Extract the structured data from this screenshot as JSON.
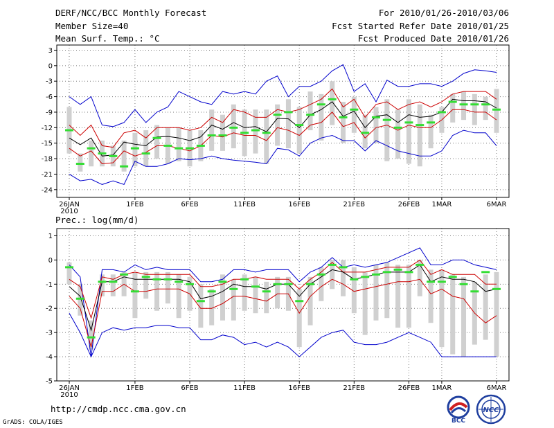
{
  "header": {
    "left": [
      "DERF/NCC/BCC Monthly Forecast",
      "Member Size=40",
      "Mean Surf. Temp.: °C"
    ],
    "right": [
      "For 2010/01/26-2010/03/06",
      "Fcst Started Refer Date 2010/01/25",
      "Fcst Produced Date 2010/01/26"
    ]
  },
  "precip_title": "Prec.: log(mm/d)",
  "footer_url": "http://cmdp.ncc.cma.gov.cn",
  "grads_credit": "GrADS: COLA/IGES",
  "logos": {
    "bcc": "BCC",
    "ncc": "NCC"
  },
  "colors": {
    "max_min": "#0000cc",
    "spread": "#cc0000",
    "mean": "#000000",
    "median": "#33dd33",
    "box": "#d0d0d0"
  },
  "x_tick_labels": [
    "26JAN",
    "1FEB",
    "6FEB",
    "11FEB",
    "16FEB",
    "21FEB",
    "26FEB",
    "1MAR",
    "6MAR"
  ],
  "x_year_label": "2010",
  "chart_data": [
    {
      "type": "line",
      "title": "Mean Surf. Temp.: °C",
      "x": [
        "01/26",
        "01/27",
        "01/28",
        "01/29",
        "01/30",
        "01/31",
        "02/01",
        "02/02",
        "02/03",
        "02/04",
        "02/05",
        "02/06",
        "02/07",
        "02/08",
        "02/09",
        "02/10",
        "02/11",
        "02/12",
        "02/13",
        "02/14",
        "02/15",
        "02/16",
        "02/17",
        "02/18",
        "02/19",
        "02/20",
        "02/21",
        "02/22",
        "02/23",
        "02/24",
        "02/25",
        "02/26",
        "02/27",
        "02/28",
        "03/01",
        "03/02",
        "03/03",
        "03/04",
        "03/05",
        "03/06"
      ],
      "y_ticks": [
        3,
        0,
        -3,
        -6,
        -9,
        -12,
        -15,
        -18,
        -21,
        -24
      ],
      "ylim": [
        -25.5,
        4
      ],
      "series": [
        {
          "name": "max",
          "values": [
            -6,
            -7.5,
            -6,
            -11.5,
            -11.8,
            -11,
            -8.5,
            -11,
            -9,
            -8,
            -5,
            -6,
            -7,
            -7.5,
            -5,
            -5.5,
            -5,
            -5.5,
            -3,
            -2,
            -6,
            -4,
            -4,
            -3,
            -1,
            0.2,
            -5,
            -3.5,
            -7,
            -2.8,
            -4,
            -4,
            -3.5,
            -3.5,
            -4,
            -3,
            -1.5,
            -0.8,
            -1,
            -1.3
          ]
        },
        {
          "name": "upper",
          "values": [
            -11.5,
            -13.5,
            -11.5,
            -15.5,
            -15.8,
            -13,
            -12.5,
            -14,
            -12,
            -12,
            -12,
            -12.5,
            -12,
            -10,
            -11,
            -8.5,
            -9,
            -10,
            -10,
            -8.5,
            -9,
            -8.5,
            -7.5,
            -6.5,
            -4.5,
            -8,
            -6.5,
            -10,
            -7.5,
            -7,
            -8.5,
            -7.5,
            -7,
            -8,
            -7,
            -5.5,
            -5,
            -5,
            -5,
            -6.5
          ]
        },
        {
          "name": "mean",
          "values": [
            -14,
            -15.3,
            -14,
            -17.5,
            -17.3,
            -14.8,
            -15.2,
            -15.5,
            -13.8,
            -13.7,
            -14,
            -14.5,
            -13.8,
            -11.5,
            -12.3,
            -11,
            -12,
            -11.8,
            -12.8,
            -10.2,
            -10.3,
            -12,
            -9.5,
            -8.5,
            -7,
            -9.8,
            -8.8,
            -12,
            -9.8,
            -9.5,
            -11,
            -9.5,
            -10,
            -9.8,
            -9,
            -6.5,
            -6.8,
            -6.8,
            -7,
            -8.2
          ]
        },
        {
          "name": "lower",
          "values": [
            -16,
            -17.5,
            -16.5,
            -19,
            -18.8,
            -16.5,
            -17.5,
            -16.8,
            -15.5,
            -15.5,
            -16,
            -16.5,
            -15.5,
            -13.5,
            -13.8,
            -13,
            -13.5,
            -13.5,
            -14.5,
            -12,
            -12.5,
            -13.5,
            -11.5,
            -11,
            -9,
            -11.8,
            -11,
            -14,
            -12,
            -11.5,
            -12.5,
            -11.5,
            -12,
            -12,
            -10.5,
            -8.5,
            -8.5,
            -9,
            -9,
            -10.5
          ]
        },
        {
          "name": "min",
          "values": [
            -21,
            -22.3,
            -22,
            -23,
            -22.3,
            -23,
            -18.5,
            -19.5,
            -19.5,
            -19,
            -18,
            -18.2,
            -18,
            -17.5,
            -18,
            -18.3,
            -18.5,
            -18.7,
            -19,
            -16,
            -16.3,
            -17.5,
            -15,
            -14,
            -13.5,
            -14.5,
            -14.5,
            -16.5,
            -14.5,
            -15.5,
            -16.5,
            -17,
            -17.5,
            -17.5,
            -16.5,
            -13.5,
            -12.5,
            -13,
            -13,
            -15.5
          ]
        },
        {
          "name": "median",
          "values": [
            -12.5,
            -19,
            -16,
            -17,
            -17.5,
            -19.5,
            -16,
            -17,
            -14,
            -15.5,
            -16,
            -16,
            -15.5,
            -13.5,
            -13.5,
            -12,
            -13,
            -12.5,
            -13,
            -9.5,
            -9,
            -11.5,
            -9.5,
            -7.5,
            -6.5,
            -10,
            -8.5,
            -13,
            -10,
            -10.5,
            -12,
            -11,
            -11.5,
            -11,
            -9,
            -7,
            -7.5,
            -7.5,
            -7.5,
            -8.5
          ]
        },
        {
          "name": "box_top",
          "values": [
            -8,
            -17,
            -14.5,
            -14.5,
            -15.5,
            -14.5,
            -13,
            -12.5,
            -11.5,
            -12,
            -12,
            -12.5,
            -12.5,
            -8.5,
            -9.5,
            -7.5,
            -8.5,
            -8.5,
            -8.5,
            -7.5,
            -6.5,
            -8,
            -5,
            -5.5,
            -3,
            -7,
            -6,
            -9.5,
            -8,
            -6.5,
            -8.5,
            -6.5,
            -7.5,
            -9.5,
            -8,
            -5.5,
            -5,
            -5.5,
            -6,
            -4.5
          ]
        },
        {
          "name": "box_bottom",
          "values": [
            -17,
            -20.5,
            -19.5,
            -19.5,
            -19.5,
            -20.5,
            -19.5,
            -19.5,
            -18,
            -19,
            -18.5,
            -19.5,
            -18.5,
            -16.5,
            -16.5,
            -16,
            -17.5,
            -17,
            -19,
            -15.5,
            -16,
            -17,
            -12.5,
            -14.5,
            -11.5,
            -15,
            -13,
            -16,
            -15,
            -18.5,
            -18,
            -19,
            -19.5,
            -16,
            -13,
            -11,
            -10.5,
            -11.5,
            -10.5,
            -13
          ]
        }
      ]
    },
    {
      "type": "line",
      "title": "Prec.: log(mm/d)",
      "x": [
        "01/26",
        "01/27",
        "01/28",
        "01/29",
        "01/30",
        "01/31",
        "02/01",
        "02/02",
        "02/03",
        "02/04",
        "02/05",
        "02/06",
        "02/07",
        "02/08",
        "02/09",
        "02/10",
        "02/11",
        "02/12",
        "02/13",
        "02/14",
        "02/15",
        "02/16",
        "02/17",
        "02/18",
        "02/19",
        "02/20",
        "02/21",
        "02/22",
        "02/23",
        "02/24",
        "02/25",
        "02/26",
        "02/27",
        "02/28",
        "03/01",
        "03/02",
        "03/03",
        "03/04",
        "03/05",
        "03/06"
      ],
      "y_ticks": [
        1,
        0,
        -1,
        -2,
        -3,
        -4,
        -5
      ],
      "ylim": [
        -5,
        1.3
      ],
      "series": [
        {
          "name": "max",
          "values": [
            -0.2,
            -0.7,
            -4,
            -0.4,
            -0.4,
            -0.5,
            -0.2,
            -0.4,
            -0.3,
            -0.4,
            -0.4,
            -0.4,
            -0.9,
            -0.9,
            -0.8,
            -0.4,
            -0.4,
            -0.5,
            -0.4,
            -0.4,
            -0.4,
            -0.9,
            -0.5,
            -0.3,
            0.1,
            -0.3,
            -0.2,
            -0.3,
            -0.2,
            -0.1,
            0.1,
            0.3,
            0.5,
            -0.2,
            -0.2,
            0,
            0,
            -0.2,
            -0.3,
            -0.4
          ]
        },
        {
          "name": "upper",
          "values": [
            -0.8,
            -1.1,
            -2.4,
            -0.7,
            -0.8,
            -0.6,
            -0.5,
            -0.6,
            -0.6,
            -0.6,
            -0.6,
            -0.6,
            -1.1,
            -1.1,
            -1,
            -0.8,
            -0.8,
            -0.7,
            -0.8,
            -0.8,
            -0.8,
            -1.2,
            -0.8,
            -0.5,
            -0.1,
            -0.5,
            -0.5,
            -0.5,
            -0.4,
            -0.3,
            -0.3,
            -0.3,
            0,
            -0.6,
            -0.4,
            -0.6,
            -0.6,
            -0.6,
            -1,
            -1
          ]
        },
        {
          "name": "mean",
          "values": [
            -1.1,
            -1.5,
            -2.9,
            -0.9,
            -0.9,
            -0.7,
            -0.8,
            -0.8,
            -0.8,
            -0.8,
            -0.8,
            -0.9,
            -1.6,
            -1.5,
            -1.3,
            -1,
            -1.1,
            -1.1,
            -1.2,
            -1,
            -1,
            -1.5,
            -1,
            -0.7,
            -0.4,
            -0.5,
            -0.8,
            -0.7,
            -0.6,
            -0.5,
            -0.5,
            -0.5,
            -0.2,
            -0.9,
            -0.7,
            -0.8,
            -0.8,
            -0.9,
            -1.3,
            -1.2
          ]
        },
        {
          "name": "lower",
          "values": [
            -1.5,
            -2,
            -3.6,
            -1.3,
            -1.3,
            -1,
            -1.3,
            -1.3,
            -1.2,
            -1.2,
            -1.2,
            -1.4,
            -2,
            -2,
            -1.8,
            -1.5,
            -1.5,
            -1.6,
            -1.7,
            -1.4,
            -1.4,
            -2.2,
            -1.5,
            -1.1,
            -0.8,
            -1,
            -1.3,
            -1.2,
            -1.1,
            -1,
            -0.9,
            -0.9,
            -0.8,
            -1.4,
            -1.2,
            -1.5,
            -1.6,
            -2.2,
            -2.6,
            -2.3
          ]
        },
        {
          "name": "min",
          "values": [
            -2.2,
            -3,
            -4,
            -3,
            -2.8,
            -2.9,
            -2.8,
            -2.8,
            -2.7,
            -2.7,
            -2.8,
            -2.8,
            -3.3,
            -3.3,
            -3.1,
            -3.2,
            -3.5,
            -3.4,
            -3.6,
            -3.4,
            -3.6,
            -4,
            -3.6,
            -3.2,
            -3,
            -2.9,
            -3.4,
            -3.5,
            -3.5,
            -3.4,
            -3.2,
            -3,
            -3.2,
            -3.4,
            -4,
            -4,
            -4,
            -4,
            -4,
            -4
          ]
        },
        {
          "name": "median",
          "values": [
            -0.3,
            -1.6,
            -3.2,
            -0.9,
            -0.9,
            -0.6,
            -1.3,
            -0.7,
            -0.8,
            -0.8,
            -0.9,
            -1,
            -1.7,
            -1.3,
            -0.9,
            -1.2,
            -0.8,
            -1.1,
            -1.3,
            -1,
            -1,
            -1.7,
            -1,
            -0.6,
            -0.2,
            -0.3,
            -0.8,
            -0.7,
            -0.6,
            -0.5,
            -0.4,
            -0.5,
            -0.2,
            -0.9,
            -0.9,
            -0.7,
            -1,
            -1.3,
            -0.5,
            -1.2
          ]
        },
        {
          "name": "box_top",
          "values": [
            -0.1,
            -1,
            -2.5,
            -0.6,
            -0.6,
            -0.5,
            -0.5,
            -0.5,
            -0.5,
            -0.5,
            -0.6,
            -0.7,
            -1,
            -1.2,
            -0.6,
            -0.8,
            -0.6,
            -0.7,
            -0.9,
            -0.7,
            -0.7,
            -1.2,
            -0.7,
            -0.3,
            0,
            0,
            -0.3,
            -0.5,
            -0.2,
            -0.1,
            -0.2,
            -0.2,
            0,
            -0.4,
            -0.4,
            -0.6,
            -0.7,
            -0.9,
            -0.6,
            -0.5
          ]
        },
        {
          "name": "box_bottom",
          "values": [
            -1,
            -2.3,
            -3.7,
            -1.5,
            -1.5,
            -1.5,
            -2.4,
            -1.6,
            -2.1,
            -1.8,
            -2.4,
            -2.1,
            -2.8,
            -2.7,
            -2.5,
            -2.5,
            -2.1,
            -2.2,
            -2.2,
            -2,
            -2.1,
            -3.6,
            -2.7,
            -1.7,
            -1.2,
            -1.5,
            -2.2,
            -3.1,
            -2.5,
            -2.4,
            -2.8,
            -2.8,
            -1.5,
            -2.6,
            -3.6,
            -3.9,
            -4,
            -3.5,
            -3.3,
            -4
          ]
        }
      ]
    }
  ]
}
